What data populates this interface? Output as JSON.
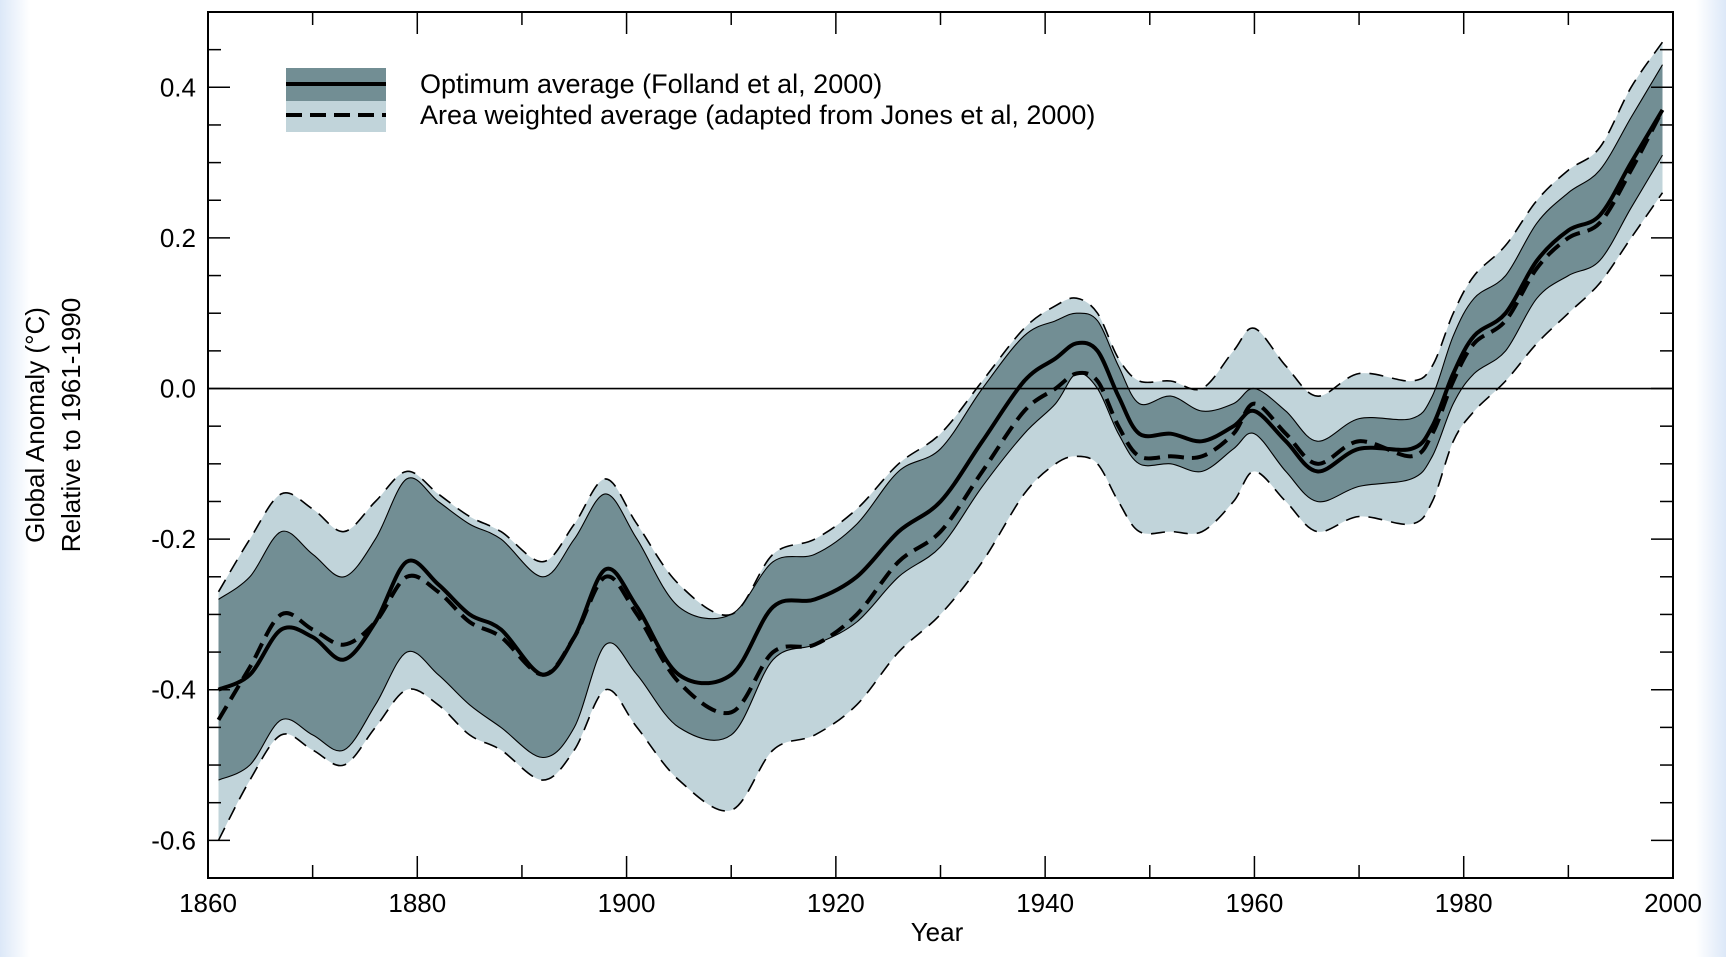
{
  "chart_data": {
    "type": "line",
    "title": "",
    "xlabel": "Year",
    "ylabel": [
      "Global Anomaly (°C)",
      "Relative to 1961-1990"
    ],
    "xlim": [
      1860,
      2000
    ],
    "ylim": [
      -0.65,
      0.5
    ],
    "xticks": [
      1860,
      1880,
      1900,
      1920,
      1940,
      1960,
      1980,
      2000
    ],
    "yticks": [
      0.4,
      0.2,
      0.0,
      -0.2,
      -0.4,
      -0.6
    ],
    "ytick_labels": [
      "0.4",
      "0.2",
      "0.0",
      "-0.2",
      "-0.4",
      "-0.6"
    ],
    "reference_line": 0.0,
    "legend_position": "top-left",
    "colors": {
      "inner_band": "#728e94",
      "outer_band": "#c1d4da",
      "line": "#000000"
    },
    "series": [
      {
        "name": "Optimum average (Folland et al, 2000)",
        "style": "solid",
        "x": [
          1861,
          1864,
          1867,
          1870,
          1873,
          1876,
          1879,
          1882,
          1885,
          1888,
          1892,
          1895,
          1898,
          1901,
          1905,
          1910,
          1914,
          1918,
          1922,
          1926,
          1930,
          1934,
          1938,
          1941,
          1943,
          1945,
          1947,
          1949,
          1952,
          1955,
          1958,
          1960,
          1963,
          1966,
          1970,
          1975,
          1977,
          1979,
          1981,
          1984,
          1987,
          1990,
          1993,
          1996,
          1999
        ],
        "values": [
          -0.4,
          -0.38,
          -0.32,
          -0.33,
          -0.36,
          -0.31,
          -0.23,
          -0.26,
          -0.3,
          -0.32,
          -0.38,
          -0.33,
          -0.24,
          -0.29,
          -0.38,
          -0.38,
          -0.29,
          -0.28,
          -0.25,
          -0.19,
          -0.15,
          -0.07,
          0.01,
          0.04,
          0.06,
          0.05,
          -0.01,
          -0.06,
          -0.06,
          -0.07,
          -0.05,
          -0.03,
          -0.07,
          -0.11,
          -0.08,
          -0.08,
          -0.05,
          0.02,
          0.07,
          0.1,
          0.17,
          0.21,
          0.23,
          0.3,
          0.37
        ]
      },
      {
        "name": "Area weighted average (adapted from Jones et al, 2000)",
        "style": "dashed",
        "x": [
          1861,
          1864,
          1867,
          1870,
          1873,
          1876,
          1879,
          1882,
          1885,
          1888,
          1892,
          1895,
          1898,
          1901,
          1905,
          1910,
          1914,
          1918,
          1922,
          1926,
          1930,
          1934,
          1938,
          1941,
          1943,
          1945,
          1947,
          1949,
          1952,
          1955,
          1958,
          1960,
          1963,
          1966,
          1970,
          1975,
          1977,
          1979,
          1981,
          1984,
          1987,
          1990,
          1993,
          1996,
          1999
        ],
        "values": [
          -0.44,
          -0.37,
          -0.3,
          -0.32,
          -0.34,
          -0.31,
          -0.25,
          -0.27,
          -0.31,
          -0.33,
          -0.38,
          -0.33,
          -0.25,
          -0.3,
          -0.39,
          -0.43,
          -0.35,
          -0.34,
          -0.3,
          -0.23,
          -0.19,
          -0.11,
          -0.03,
          0.0,
          0.02,
          0.01,
          -0.05,
          -0.09,
          -0.09,
          -0.09,
          -0.06,
          -0.02,
          -0.06,
          -0.1,
          -0.07,
          -0.09,
          -0.06,
          0.01,
          0.06,
          0.09,
          0.16,
          0.2,
          0.22,
          0.29,
          0.37
        ]
      }
    ],
    "bands": {
      "x": [
        1861,
        1864,
        1867,
        1870,
        1873,
        1876,
        1879,
        1882,
        1885,
        1888,
        1892,
        1895,
        1898,
        1901,
        1905,
        1910,
        1914,
        1918,
        1922,
        1926,
        1930,
        1934,
        1938,
        1941,
        1943,
        1945,
        1947,
        1949,
        1952,
        1955,
        1958,
        1960,
        1963,
        1966,
        1970,
        1975,
        1977,
        1979,
        1981,
        1984,
        1987,
        1990,
        1993,
        1996,
        1999
      ],
      "inner_upper": [
        -0.28,
        -0.25,
        -0.19,
        -0.22,
        -0.25,
        -0.2,
        -0.12,
        -0.15,
        -0.18,
        -0.2,
        -0.25,
        -0.2,
        -0.14,
        -0.2,
        -0.29,
        -0.3,
        -0.23,
        -0.22,
        -0.18,
        -0.11,
        -0.08,
        0.0,
        0.07,
        0.09,
        0.1,
        0.09,
        0.03,
        -0.02,
        -0.01,
        -0.03,
        -0.02,
        0.0,
        -0.03,
        -0.07,
        -0.04,
        -0.04,
        -0.01,
        0.07,
        0.12,
        0.15,
        0.22,
        0.26,
        0.29,
        0.36,
        0.43
      ],
      "inner_lower": [
        -0.52,
        -0.5,
        -0.44,
        -0.46,
        -0.48,
        -0.42,
        -0.35,
        -0.38,
        -0.42,
        -0.45,
        -0.49,
        -0.45,
        -0.34,
        -0.38,
        -0.45,
        -0.46,
        -0.36,
        -0.34,
        -0.31,
        -0.25,
        -0.21,
        -0.13,
        -0.06,
        -0.02,
        0.02,
        0.0,
        -0.06,
        -0.1,
        -0.1,
        -0.11,
        -0.08,
        -0.06,
        -0.11,
        -0.15,
        -0.13,
        -0.12,
        -0.09,
        -0.02,
        0.02,
        0.05,
        0.12,
        0.15,
        0.17,
        0.24,
        0.31
      ],
      "outer_upper": [
        -0.27,
        -0.2,
        -0.14,
        -0.16,
        -0.19,
        -0.15,
        -0.11,
        -0.14,
        -0.17,
        -0.19,
        -0.23,
        -0.18,
        -0.12,
        -0.18,
        -0.26,
        -0.3,
        -0.22,
        -0.2,
        -0.16,
        -0.1,
        -0.06,
        0.01,
        0.08,
        0.11,
        0.12,
        0.1,
        0.04,
        0.01,
        0.01,
        0.0,
        0.05,
        0.08,
        0.03,
        -0.01,
        0.02,
        0.01,
        0.03,
        0.1,
        0.15,
        0.19,
        0.25,
        0.29,
        0.32,
        0.4,
        0.46
      ],
      "outer_lower": [
        -0.6,
        -0.52,
        -0.46,
        -0.48,
        -0.5,
        -0.45,
        -0.4,
        -0.42,
        -0.46,
        -0.48,
        -0.52,
        -0.48,
        -0.4,
        -0.45,
        -0.52,
        -0.56,
        -0.48,
        -0.46,
        -0.42,
        -0.35,
        -0.3,
        -0.23,
        -0.14,
        -0.1,
        -0.09,
        -0.1,
        -0.15,
        -0.19,
        -0.19,
        -0.19,
        -0.15,
        -0.11,
        -0.15,
        -0.19,
        -0.17,
        -0.18,
        -0.15,
        -0.07,
        -0.03,
        0.01,
        0.06,
        0.1,
        0.14,
        0.2,
        0.26
      ]
    },
    "legend": [
      {
        "label": "Optimum average (Folland et al, 2000)",
        "style": "solid"
      },
      {
        "label": "Area weighted average (adapted from Jones et al, 2000)",
        "style": "dashed"
      }
    ]
  }
}
